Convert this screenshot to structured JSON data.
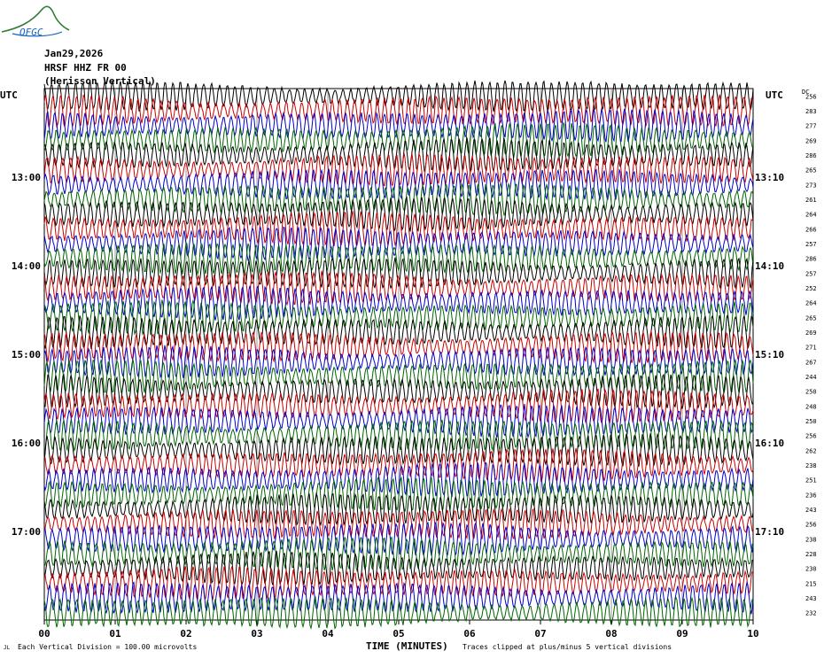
{
  "header": {
    "logo_text": "OFGC",
    "date": "Jan29,2026",
    "station": "HRSF HHZ FR 00",
    "station_desc": "(Herisson Vertical)"
  },
  "chart_data": {
    "type": "line",
    "title": "",
    "xlabel": "TIME (MINUTES)",
    "x_ticks": [
      "00",
      "01",
      "02",
      "03",
      "04",
      "05",
      "06",
      "07",
      "08",
      "09",
      "10"
    ],
    "xlim": [
      0,
      10
    ],
    "left_axis_title": "UTC",
    "right_axis_title": "UTC",
    "dc_header": "DC",
    "left_hour_labels": [
      {
        "row": 6,
        "label": "13:00"
      },
      {
        "row": 12,
        "label": "14:00"
      },
      {
        "row": 18,
        "label": "15:00"
      },
      {
        "row": 24,
        "label": "16:00"
      },
      {
        "row": 30,
        "label": "17:00"
      }
    ],
    "right_hour_labels": [
      {
        "row": 6,
        "label": "13:10"
      },
      {
        "row": 12,
        "label": "14:10"
      },
      {
        "row": 18,
        "label": "15:10"
      },
      {
        "row": 24,
        "label": "16:10"
      },
      {
        "row": 30,
        "label": "17:10"
      }
    ],
    "trace_colors": [
      "#000000",
      "#cc0000",
      "#0000cc",
      "#006600"
    ],
    "row_count": 36,
    "dc_offsets": [
      256,
      283,
      277,
      269,
      286,
      265,
      273,
      261,
      264,
      266,
      257,
      286,
      257,
      252,
      264,
      265,
      269,
      271,
      267,
      244,
      250,
      248,
      250,
      256,
      262,
      238,
      251,
      236,
      243,
      256,
      238,
      228,
      230,
      215,
      243,
      232
    ],
    "footer_left": "Each Vertical Division =  100.00 microvolts",
    "footer_right": "Traces clipped at plus/minus 5 vertical divisions"
  }
}
